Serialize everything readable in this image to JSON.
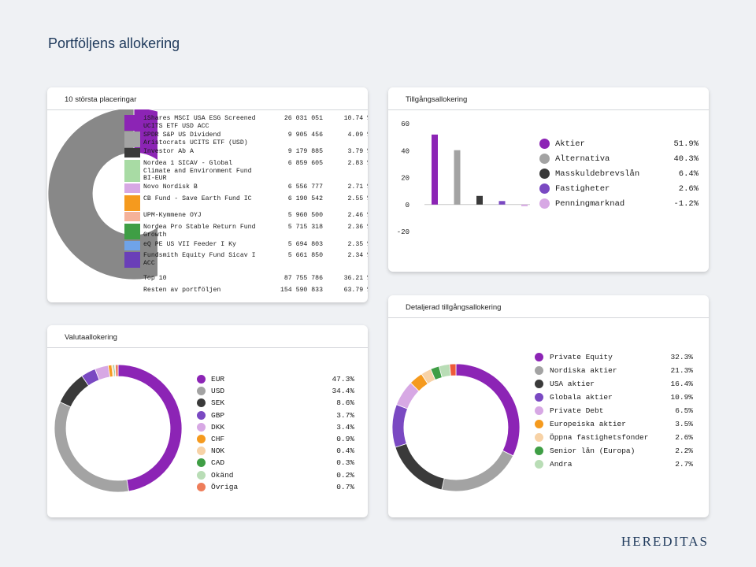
{
  "page": {
    "title": "Portföljens allokering",
    "brand": "HEREDITAS"
  },
  "holdings_card": {
    "title": "10 största placeringar",
    "items": [
      {
        "name": "iShares MSCI USA ESG Screened UCITS ETF USD ACC",
        "value": "26 031 051",
        "pct": "10.74 %",
        "color": "#8c24b5"
      },
      {
        "name": "SPDR S&P US Dividend Aristocrats UCITS ETF (USD)",
        "value": "9 905 456",
        "pct": "4.09 %",
        "color": "#a3a3a3"
      },
      {
        "name": "Investor Ab A",
        "value": "9 179 885",
        "pct": "3.79 %",
        "color": "#3a3a3a"
      },
      {
        "name": "Nordea 1 SICAV - Global Climate and Environment Fund BI-EUR",
        "value": "6 859 605",
        "pct": "2.83 %",
        "color": "#a8dba4"
      },
      {
        "name": "Novo Nordisk B",
        "value": "6 556 777",
        "pct": "2.71 %",
        "color": "#d7a8e4"
      },
      {
        "name": "CB Fund - Save Earth Fund IC",
        "value": "6 190 542",
        "pct": "2.55 %",
        "color": "#f59a1e"
      },
      {
        "name": "UPM-Kymmene OYJ",
        "value": "5 960 500",
        "pct": "2.46 %",
        "color": "#f5b29a"
      },
      {
        "name": "Nordea Pro Stable Return Fund Growth",
        "value": "5 715 318",
        "pct": "2.36 %",
        "color": "#3f9e45"
      },
      {
        "name": "eQ PE US VII Feeder I Ky",
        "value": "5 694 803",
        "pct": "2.35 %",
        "color": "#6fa3e8"
      },
      {
        "name": "Fundsmith Equity Fund Sicav I ACC",
        "value": "5 661 850",
        "pct": "2.34 %",
        "color": "#6a3fb8"
      }
    ],
    "top10": {
      "label": "Top 10",
      "value": "87 755 786",
      "pct": "36.21 %"
    },
    "rest": {
      "label": "Resten av portföljen",
      "value": "154 590 833",
      "pct": "63.79 %",
      "color": "#888888"
    }
  },
  "asset_card": {
    "title": "Tillgångsallokering",
    "legend": [
      {
        "label": "Aktier",
        "value": "51.9%",
        "color": "#8c24b5"
      },
      {
        "label": "Alternativa",
        "value": "40.3%",
        "color": "#a3a3a3"
      },
      {
        "label": "Masskuldebrevslån",
        "value": "6.4%",
        "color": "#3a3a3a"
      },
      {
        "label": "Fastigheter",
        "value": "2.6%",
        "color": "#7a49c2"
      },
      {
        "label": "Penningmarknad",
        "value": "-1.2%",
        "color": "#d7a8e4"
      }
    ]
  },
  "currency_card": {
    "title": "Valutaallokering",
    "legend": [
      {
        "label": "EUR",
        "value": "47.3%",
        "color": "#8c24b5"
      },
      {
        "label": "USD",
        "value": "34.4%",
        "color": "#a3a3a3"
      },
      {
        "label": "SEK",
        "value": "8.6%",
        "color": "#3a3a3a"
      },
      {
        "label": "GBP",
        "value": "3.7%",
        "color": "#7a49c2"
      },
      {
        "label": "DKK",
        "value": "3.4%",
        "color": "#d7a8e4"
      },
      {
        "label": "CHF",
        "value": "0.9%",
        "color": "#f59a1e"
      },
      {
        "label": "NOK",
        "value": "0.4%",
        "color": "#f7d2a6"
      },
      {
        "label": "CAD",
        "value": "0.3%",
        "color": "#3f9e45"
      },
      {
        "label": "Okänd",
        "value": "0.2%",
        "color": "#b9ddb6"
      },
      {
        "label": "Övriga",
        "value": "0.7%",
        "color": "#ee7d5a"
      }
    ]
  },
  "detailed_card": {
    "title": "Detaljerad tillgångsallokering",
    "legend": [
      {
        "label": "Private Equity",
        "value": "32.3%",
        "color": "#8c24b5"
      },
      {
        "label": "Nordiska aktier",
        "value": "21.3%",
        "color": "#a3a3a3"
      },
      {
        "label": "USA aktier",
        "value": "16.4%",
        "color": "#3a3a3a"
      },
      {
        "label": "Globala aktier",
        "value": "10.9%",
        "color": "#7a49c2"
      },
      {
        "label": "Private Debt",
        "value": "6.5%",
        "color": "#d7a8e4"
      },
      {
        "label": "Europeiska aktier",
        "value": "3.5%",
        "color": "#f59a1e"
      },
      {
        "label": "Öppna fastighetsfonder",
        "value": "2.6%",
        "color": "#f7d2a6"
      },
      {
        "label": "Senior lån (Europa)",
        "value": "2.2%",
        "color": "#3f9e45"
      },
      {
        "label": "Andra",
        "value": "2.7%",
        "color": "#b9ddb6"
      }
    ],
    "extra_segment_color": "#ee5a3a"
  },
  "chart_data": [
    {
      "type": "pie",
      "variant": "donut",
      "title": "10 största placeringar",
      "labels": [
        "iShares MSCI USA ESG Screened UCITS ETF USD ACC",
        "SPDR S&P US Dividend Aristocrats UCITS ETF (USD)",
        "Investor Ab A",
        "Nordea 1 SICAV - Global Climate and Environment Fund BI-EUR",
        "Novo Nordisk B",
        "CB Fund - Save Earth Fund IC",
        "UPM-Kymmene OYJ",
        "Nordea Pro Stable Return Fund Growth",
        "eQ PE US VII Feeder I Ky",
        "Fundsmith Equity Fund Sicav I ACC",
        "Resten av portföljen"
      ],
      "values": [
        10.74,
        4.09,
        3.79,
        2.83,
        2.71,
        2.55,
        2.46,
        2.36,
        2.35,
        2.34,
        63.79
      ],
      "start_angle_deg": 270
    },
    {
      "type": "bar",
      "title": "Tillgångsallokering",
      "categories": [
        "Aktier",
        "Alternativa",
        "Masskuldebrevslån",
        "Fastigheter",
        "Penningmarknad"
      ],
      "values": [
        51.9,
        40.3,
        6.4,
        2.6,
        -1.2
      ],
      "ylim": [
        -20,
        60
      ],
      "yticks": [
        60,
        40,
        20,
        0,
        -20
      ],
      "grid": false
    },
    {
      "type": "pie",
      "variant": "donut",
      "title": "Valutaallokering",
      "labels": [
        "EUR",
        "USD",
        "SEK",
        "GBP",
        "DKK",
        "CHF",
        "NOK",
        "CAD",
        "Okänd",
        "Övriga"
      ],
      "values": [
        47.3,
        34.4,
        8.6,
        3.7,
        3.4,
        0.9,
        0.4,
        0.3,
        0.2,
        0.7
      ],
      "start_angle_deg": 0
    },
    {
      "type": "pie",
      "variant": "donut",
      "title": "Detaljerad tillgångsallokering",
      "labels": [
        "Private Equity",
        "Nordiska aktier",
        "USA aktier",
        "Globala aktier",
        "Private Debt",
        "Europeiska aktier",
        "Öppna fastighetsfonder",
        "Senior lån (Europa)",
        "Andra",
        ""
      ],
      "values": [
        32.3,
        21.3,
        16.4,
        10.9,
        6.5,
        3.5,
        2.6,
        2.2,
        2.7,
        1.6
      ],
      "start_angle_deg": 0
    }
  ]
}
